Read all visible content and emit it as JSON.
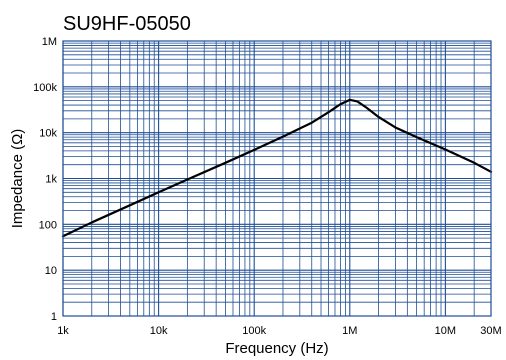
{
  "chart_data": {
    "type": "line",
    "title": "SU9HF-05050",
    "xlabel": "Frequency (Hz)",
    "ylabel": "Impedance (Ω)",
    "x_scale": "log",
    "y_scale": "log",
    "xlim": [
      1000,
      30000000
    ],
    "ylim": [
      1,
      1000000
    ],
    "x_ticks": [
      {
        "value": 1000,
        "label": "1k"
      },
      {
        "value": 10000,
        "label": "10k"
      },
      {
        "value": 100000,
        "label": "100k"
      },
      {
        "value": 1000000,
        "label": "1M"
      },
      {
        "value": 10000000,
        "label": "10M"
      },
      {
        "value": 30000000,
        "label": "30M"
      }
    ],
    "y_ticks": [
      {
        "value": 1,
        "label": "1"
      },
      {
        "value": 10,
        "label": "10"
      },
      {
        "value": 100,
        "label": "100"
      },
      {
        "value": 1000,
        "label": "1k"
      },
      {
        "value": 10000,
        "label": "10k"
      },
      {
        "value": 100000,
        "label": "100k"
      },
      {
        "value": 1000000,
        "label": "1M"
      }
    ],
    "grid": true,
    "grid_color": "#1f4e96",
    "line_color": "#000000",
    "series": [
      {
        "x": [
          1000,
          2000,
          5000,
          10000,
          20000,
          50000,
          100000,
          200000,
          400000,
          600000,
          800000,
          1000000,
          1200000,
          1500000,
          2000000,
          3000000,
          5000000,
          10000000,
          20000000,
          30000000
        ],
        "y": [
          55,
          110,
          260,
          500,
          950,
          2200,
          4200,
          8200,
          16500,
          28000,
          42000,
          52000,
          48000,
          35000,
          22000,
          13000,
          8000,
          4300,
          2200,
          1400
        ]
      }
    ]
  }
}
